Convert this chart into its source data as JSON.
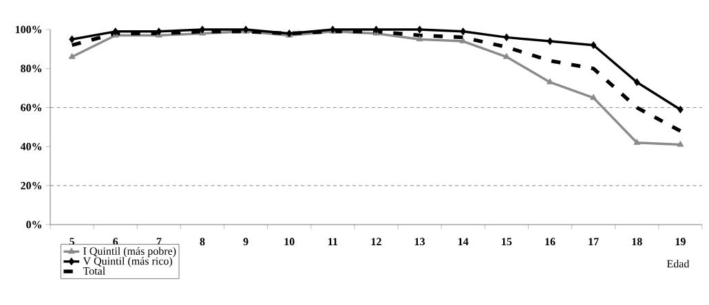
{
  "chart_data": {
    "type": "line",
    "xlabel": "Edad",
    "categories": [
      "5",
      "6",
      "7",
      "8",
      "9",
      "10",
      "11",
      "12",
      "13",
      "14",
      "15",
      "16",
      "17",
      "18",
      "19"
    ],
    "series": [
      {
        "name": "I Quintil (más pobre)",
        "color": "#8a8a8a",
        "marker": "triangle",
        "line_style": "solid",
        "values": [
          86,
          97,
          97,
          98,
          99,
          97,
          99,
          98,
          95,
          94,
          86,
          73,
          65,
          42,
          41
        ]
      },
      {
        "name": "V Quintil (más rico)",
        "color": "#000000",
        "marker": "diamond",
        "line_style": "solid",
        "values": [
          95,
          99,
          99,
          100,
          100,
          98,
          100,
          100,
          100,
          99,
          96,
          94,
          92,
          73,
          59
        ]
      },
      {
        "name": "Total",
        "color": "#000000",
        "marker": "none",
        "line_style": "dashed",
        "values": [
          92,
          98,
          98,
          99,
          99,
          98,
          99,
          99,
          97,
          96,
          91,
          84,
          80,
          60,
          48
        ]
      }
    ],
    "ylim": [
      0,
      100
    ],
    "yticks": [
      {
        "value": 0,
        "label": "0%"
      },
      {
        "value": 20,
        "label": "20%"
      },
      {
        "value": 40,
        "label": "40%"
      },
      {
        "value": 60,
        "label": "60%"
      },
      {
        "value": 80,
        "label": "80%"
      },
      {
        "value": 100,
        "label": "100%"
      }
    ],
    "ref_lines": [
      {
        "axis": "y",
        "value": 20,
        "color": "#555555",
        "line_style": "dashed"
      },
      {
        "axis": "y",
        "value": 60,
        "color": "#555555",
        "line_style": "dashed"
      }
    ],
    "legend": "bottom left"
  }
}
